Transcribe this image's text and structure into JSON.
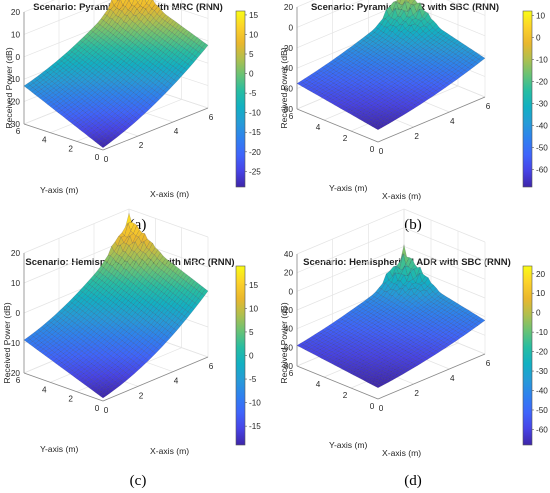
{
  "colormap": [
    "#3e26a8",
    "#4743e6",
    "#3f64fb",
    "#2f80ef",
    "#269bd7",
    "#12b0c2",
    "#27bda2",
    "#68c276",
    "#b0bf4e",
    "#eab72d",
    "#fcd22a",
    "#f9fb15"
  ],
  "colors": {
    "mesh_line": "#2b2440",
    "grid": "#e4e4e4",
    "axis_line": "#8a8a8a"
  },
  "chart_data": [
    {
      "type": "surface3d",
      "title": "Scenario: Pyramidal ADR with MRC (RNN)",
      "xlabel": "X-axis (m)",
      "ylabel": "Y-axis (m)",
      "zlabel": "Received Power (dB)",
      "xlim": [
        0,
        6
      ],
      "ylim": [
        0,
        6
      ],
      "zlim": [
        -30,
        20
      ],
      "x_ticks": [
        "0",
        "2",
        "4",
        "6"
      ],
      "y_ticks": [
        "0",
        "2",
        "4",
        "6"
      ],
      "z_ticks": [
        "-30",
        "-20",
        "-10",
        "0",
        "10",
        "20"
      ],
      "colorbar_ticks": [
        "15",
        "10",
        "5",
        "0",
        "-5",
        "-10",
        "-15",
        "-20",
        "-25"
      ],
      "colorbar_range": [
        -29,
        16
      ],
      "surface": {
        "z_corner_x0_y0": -29,
        "z_corner_x6_y0": -2,
        "z_corner_x0_y6": -13,
        "z_corner_x6_y6": 12,
        "peak_amplitude": 9
      },
      "caption": "(a)"
    },
    {
      "type": "surface3d",
      "title": "Scenario: Pyramidal ADR with SBC (RNN)",
      "xlabel": "X-axis (m)",
      "ylabel": "Y-axis (m)",
      "zlabel": "Received Power (dB)",
      "xlim": [
        0,
        6
      ],
      "ylim": [
        0,
        6
      ],
      "zlim": [
        -80,
        20
      ],
      "x_ticks": [
        "0",
        "2",
        "4",
        "6"
      ],
      "y_ticks": [
        "0",
        "2",
        "4",
        "6"
      ],
      "z_ticks": [
        "-80",
        "-60",
        "-40",
        "-20",
        "0",
        "20"
      ],
      "colorbar_ticks": [
        "10",
        "0",
        "-10",
        "-20",
        "-30",
        "-40",
        "-50",
        "-60"
      ],
      "colorbar_range": [
        -68,
        12
      ],
      "surface": {
        "z_corner_x0_y0": -68,
        "z_corner_x6_y0": -42,
        "z_corner_x0_y6": -55,
        "z_corner_x6_y6": -22,
        "peak_amplitude": 26
      },
      "caption": "(b)"
    },
    {
      "type": "surface3d",
      "title": "Scenario: Hemispherical ADR with MRC (RNN)",
      "xlabel": "X-axis (m)",
      "ylabel": "Y-axis (m)",
      "zlabel": "Received Power (dB)",
      "xlim": [
        0,
        6
      ],
      "ylim": [
        0,
        6
      ],
      "zlim": [
        -20,
        20
      ],
      "x_ticks": [
        "0",
        "2",
        "4",
        "6"
      ],
      "y_ticks": [
        "0",
        "2",
        "4",
        "6"
      ],
      "z_ticks": [
        "-20",
        "-10",
        "0",
        "10",
        "20"
      ],
      "colorbar_ticks": [
        "15",
        "10",
        "5",
        "0",
        "-5",
        "-10",
        "-15"
      ],
      "colorbar_range": [
        -19,
        19
      ],
      "surface": {
        "z_corner_x0_y0": -19,
        "z_corner_x6_y0": 2,
        "z_corner_x0_y6": -9,
        "z_corner_x6_y6": 13,
        "peak_amplitude": 6
      },
      "caption": "(c)"
    },
    {
      "type": "surface3d",
      "title": "Scenario: Hemispherical ADR with SBC (RNN)",
      "xlabel": "X-axis (m)",
      "ylabel": "Y-axis (m)",
      "zlabel": "Received Power (dB)",
      "xlim": [
        0,
        6
      ],
      "ylim": [
        0,
        6
      ],
      "zlim": [
        -80,
        40
      ],
      "x_ticks": [
        "0",
        "2",
        "4",
        "6"
      ],
      "y_ticks": [
        "0",
        "2",
        "4",
        "6"
      ],
      "z_ticks": [
        "-80",
        "-60",
        "-40",
        "-20",
        "0",
        "20",
        "40"
      ],
      "colorbar_ticks": [
        "20",
        "10",
        "0",
        "-10",
        "-20",
        "-30",
        "-40",
        "-50",
        "-60"
      ],
      "colorbar_range": [
        -68,
        24
      ],
      "surface": {
        "z_corner_x0_y0": -68,
        "z_corner_x6_y0": -44,
        "z_corner_x0_y6": -58,
        "z_corner_x6_y6": -26,
        "peak_amplitude": 30
      },
      "caption": "(d)"
    }
  ]
}
